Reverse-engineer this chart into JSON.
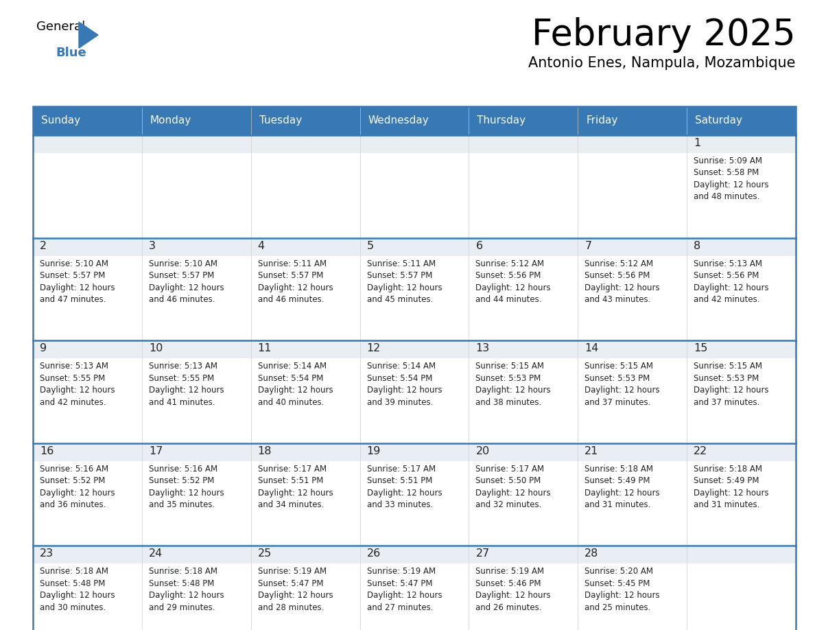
{
  "title": "February 2025",
  "subtitle": "Antonio Enes, Nampula, Mozambique",
  "days_of_week": [
    "Sunday",
    "Monday",
    "Tuesday",
    "Wednesday",
    "Thursday",
    "Friday",
    "Saturday"
  ],
  "header_bg": "#3878b4",
  "header_text": "#ffffff",
  "cell_bg_daynum": "#e8eef4",
  "cell_bg_white": "#ffffff",
  "divider_color": "#3878b4",
  "text_color": "#222222",
  "logo_color": "#3878b4",
  "calendar_data": [
    {
      "day": 1,
      "col": 6,
      "row": 0,
      "sunrise": "5:09 AM",
      "sunset": "5:58 PM",
      "daylight_hours": 12,
      "daylight_minutes": 48
    },
    {
      "day": 2,
      "col": 0,
      "row": 1,
      "sunrise": "5:10 AM",
      "sunset": "5:57 PM",
      "daylight_hours": 12,
      "daylight_minutes": 47
    },
    {
      "day": 3,
      "col": 1,
      "row": 1,
      "sunrise": "5:10 AM",
      "sunset": "5:57 PM",
      "daylight_hours": 12,
      "daylight_minutes": 46
    },
    {
      "day": 4,
      "col": 2,
      "row": 1,
      "sunrise": "5:11 AM",
      "sunset": "5:57 PM",
      "daylight_hours": 12,
      "daylight_minutes": 46
    },
    {
      "day": 5,
      "col": 3,
      "row": 1,
      "sunrise": "5:11 AM",
      "sunset": "5:57 PM",
      "daylight_hours": 12,
      "daylight_minutes": 45
    },
    {
      "day": 6,
      "col": 4,
      "row": 1,
      "sunrise": "5:12 AM",
      "sunset": "5:56 PM",
      "daylight_hours": 12,
      "daylight_minutes": 44
    },
    {
      "day": 7,
      "col": 5,
      "row": 1,
      "sunrise": "5:12 AM",
      "sunset": "5:56 PM",
      "daylight_hours": 12,
      "daylight_minutes": 43
    },
    {
      "day": 8,
      "col": 6,
      "row": 1,
      "sunrise": "5:13 AM",
      "sunset": "5:56 PM",
      "daylight_hours": 12,
      "daylight_minutes": 42
    },
    {
      "day": 9,
      "col": 0,
      "row": 2,
      "sunrise": "5:13 AM",
      "sunset": "5:55 PM",
      "daylight_hours": 12,
      "daylight_minutes": 42
    },
    {
      "day": 10,
      "col": 1,
      "row": 2,
      "sunrise": "5:13 AM",
      "sunset": "5:55 PM",
      "daylight_hours": 12,
      "daylight_minutes": 41
    },
    {
      "day": 11,
      "col": 2,
      "row": 2,
      "sunrise": "5:14 AM",
      "sunset": "5:54 PM",
      "daylight_hours": 12,
      "daylight_minutes": 40
    },
    {
      "day": 12,
      "col": 3,
      "row": 2,
      "sunrise": "5:14 AM",
      "sunset": "5:54 PM",
      "daylight_hours": 12,
      "daylight_minutes": 39
    },
    {
      "day": 13,
      "col": 4,
      "row": 2,
      "sunrise": "5:15 AM",
      "sunset": "5:53 PM",
      "daylight_hours": 12,
      "daylight_minutes": 38
    },
    {
      "day": 14,
      "col": 5,
      "row": 2,
      "sunrise": "5:15 AM",
      "sunset": "5:53 PM",
      "daylight_hours": 12,
      "daylight_minutes": 37
    },
    {
      "day": 15,
      "col": 6,
      "row": 2,
      "sunrise": "5:15 AM",
      "sunset": "5:53 PM",
      "daylight_hours": 12,
      "daylight_minutes": 37
    },
    {
      "day": 16,
      "col": 0,
      "row": 3,
      "sunrise": "5:16 AM",
      "sunset": "5:52 PM",
      "daylight_hours": 12,
      "daylight_minutes": 36
    },
    {
      "day": 17,
      "col": 1,
      "row": 3,
      "sunrise": "5:16 AM",
      "sunset": "5:52 PM",
      "daylight_hours": 12,
      "daylight_minutes": 35
    },
    {
      "day": 18,
      "col": 2,
      "row": 3,
      "sunrise": "5:17 AM",
      "sunset": "5:51 PM",
      "daylight_hours": 12,
      "daylight_minutes": 34
    },
    {
      "day": 19,
      "col": 3,
      "row": 3,
      "sunrise": "5:17 AM",
      "sunset": "5:51 PM",
      "daylight_hours": 12,
      "daylight_minutes": 33
    },
    {
      "day": 20,
      "col": 4,
      "row": 3,
      "sunrise": "5:17 AM",
      "sunset": "5:50 PM",
      "daylight_hours": 12,
      "daylight_minutes": 32
    },
    {
      "day": 21,
      "col": 5,
      "row": 3,
      "sunrise": "5:18 AM",
      "sunset": "5:49 PM",
      "daylight_hours": 12,
      "daylight_minutes": 31
    },
    {
      "day": 22,
      "col": 6,
      "row": 3,
      "sunrise": "5:18 AM",
      "sunset": "5:49 PM",
      "daylight_hours": 12,
      "daylight_minutes": 31
    },
    {
      "day": 23,
      "col": 0,
      "row": 4,
      "sunrise": "5:18 AM",
      "sunset": "5:48 PM",
      "daylight_hours": 12,
      "daylight_minutes": 30
    },
    {
      "day": 24,
      "col": 1,
      "row": 4,
      "sunrise": "5:18 AM",
      "sunset": "5:48 PM",
      "daylight_hours": 12,
      "daylight_minutes": 29
    },
    {
      "day": 25,
      "col": 2,
      "row": 4,
      "sunrise": "5:19 AM",
      "sunset": "5:47 PM",
      "daylight_hours": 12,
      "daylight_minutes": 28
    },
    {
      "day": 26,
      "col": 3,
      "row": 4,
      "sunrise": "5:19 AM",
      "sunset": "5:47 PM",
      "daylight_hours": 12,
      "daylight_minutes": 27
    },
    {
      "day": 27,
      "col": 4,
      "row": 4,
      "sunrise": "5:19 AM",
      "sunset": "5:46 PM",
      "daylight_hours": 12,
      "daylight_minutes": 26
    },
    {
      "day": 28,
      "col": 5,
      "row": 4,
      "sunrise": "5:20 AM",
      "sunset": "5:45 PM",
      "daylight_hours": 12,
      "daylight_minutes": 25
    }
  ]
}
